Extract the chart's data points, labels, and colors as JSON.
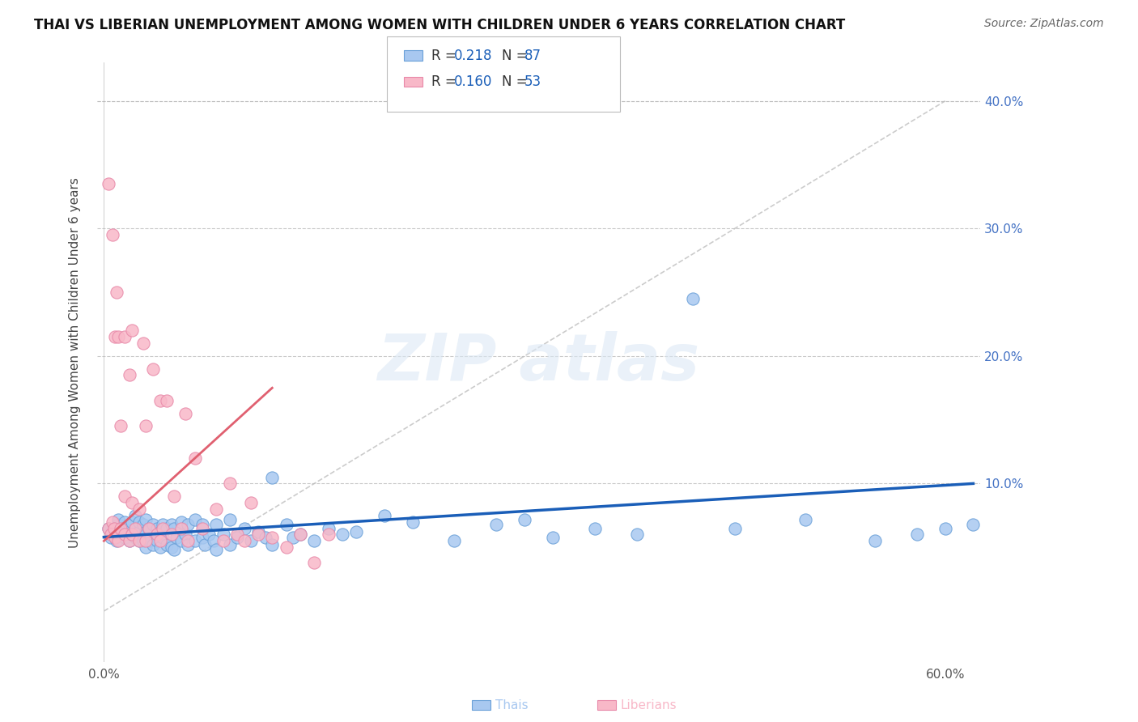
{
  "title": "THAI VS LIBERIAN UNEMPLOYMENT AMONG WOMEN WITH CHILDREN UNDER 6 YEARS CORRELATION CHART",
  "source": "Source: ZipAtlas.com",
  "ylim": [
    -0.04,
    0.43
  ],
  "xlim": [
    -0.005,
    0.625
  ],
  "legend_r1": "R = 0.218",
  "legend_n1": "N = 87",
  "legend_r2": "R = 0.160",
  "legend_n2": "N = 53",
  "thai_color": "#a8c8f0",
  "thai_edge_color": "#6aa0d8",
  "liberian_color": "#f8b8c8",
  "liberian_edge_color": "#e888a8",
  "thai_trend_color": "#1a5eb8",
  "liberian_trend_color": "#e06070",
  "ref_line_color": "#cccccc",
  "background_color": "#ffffff",
  "right_tick_color": "#4472c4",
  "thai_trend_x": [
    0.0,
    0.62
  ],
  "thai_trend_y": [
    0.058,
    0.1
  ],
  "liberian_trend_x": [
    0.0,
    0.12
  ],
  "liberian_trend_y": [
    0.055,
    0.175
  ],
  "ref_line_x": [
    0.0,
    0.6
  ],
  "ref_line_y": [
    0.0,
    0.4
  ],
  "thai_scatter_x": [
    0.003,
    0.005,
    0.007,
    0.009,
    0.01,
    0.01,
    0.012,
    0.015,
    0.015,
    0.015,
    0.018,
    0.018,
    0.02,
    0.02,
    0.022,
    0.022,
    0.025,
    0.025,
    0.025,
    0.028,
    0.028,
    0.03,
    0.03,
    0.03,
    0.032,
    0.032,
    0.035,
    0.035,
    0.038,
    0.038,
    0.04,
    0.04,
    0.042,
    0.042,
    0.045,
    0.045,
    0.048,
    0.048,
    0.05,
    0.05,
    0.052,
    0.055,
    0.055,
    0.058,
    0.06,
    0.06,
    0.065,
    0.065,
    0.07,
    0.07,
    0.072,
    0.075,
    0.078,
    0.08,
    0.08,
    0.085,
    0.09,
    0.09,
    0.095,
    0.1,
    0.105,
    0.11,
    0.115,
    0.12,
    0.12,
    0.13,
    0.135,
    0.14,
    0.15,
    0.16,
    0.17,
    0.18,
    0.2,
    0.22,
    0.25,
    0.28,
    0.3,
    0.32,
    0.35,
    0.38,
    0.42,
    0.45,
    0.5,
    0.55,
    0.58,
    0.6,
    0.62
  ],
  "thai_scatter_y": [
    0.065,
    0.058,
    0.06,
    0.055,
    0.068,
    0.072,
    0.062,
    0.058,
    0.065,
    0.07,
    0.055,
    0.068,
    0.06,
    0.07,
    0.058,
    0.075,
    0.055,
    0.062,
    0.07,
    0.055,
    0.068,
    0.05,
    0.062,
    0.072,
    0.055,
    0.065,
    0.052,
    0.068,
    0.055,
    0.065,
    0.05,
    0.062,
    0.058,
    0.068,
    0.052,
    0.065,
    0.05,
    0.068,
    0.048,
    0.065,
    0.058,
    0.055,
    0.07,
    0.06,
    0.052,
    0.068,
    0.055,
    0.072,
    0.058,
    0.068,
    0.052,
    0.06,
    0.055,
    0.048,
    0.068,
    0.06,
    0.052,
    0.072,
    0.058,
    0.065,
    0.055,
    0.062,
    0.058,
    0.052,
    0.105,
    0.068,
    0.058,
    0.06,
    0.055,
    0.065,
    0.06,
    0.062,
    0.075,
    0.07,
    0.055,
    0.068,
    0.072,
    0.058,
    0.065,
    0.06,
    0.245,
    0.065,
    0.072,
    0.055,
    0.06,
    0.065,
    0.068
  ],
  "liberian_scatter_x": [
    0.003,
    0.003,
    0.005,
    0.006,
    0.006,
    0.007,
    0.008,
    0.008,
    0.009,
    0.01,
    0.01,
    0.012,
    0.012,
    0.015,
    0.015,
    0.015,
    0.018,
    0.018,
    0.02,
    0.02,
    0.02,
    0.022,
    0.025,
    0.025,
    0.028,
    0.03,
    0.03,
    0.032,
    0.035,
    0.038,
    0.04,
    0.04,
    0.042,
    0.045,
    0.048,
    0.05,
    0.055,
    0.058,
    0.06,
    0.065,
    0.07,
    0.08,
    0.085,
    0.09,
    0.095,
    0.1,
    0.105,
    0.11,
    0.12,
    0.13,
    0.14,
    0.15,
    0.16
  ],
  "liberian_scatter_y": [
    0.065,
    0.335,
    0.06,
    0.07,
    0.295,
    0.065,
    0.058,
    0.215,
    0.25,
    0.055,
    0.215,
    0.065,
    0.145,
    0.06,
    0.09,
    0.215,
    0.055,
    0.185,
    0.06,
    0.085,
    0.22,
    0.065,
    0.055,
    0.08,
    0.21,
    0.055,
    0.145,
    0.065,
    0.19,
    0.06,
    0.055,
    0.165,
    0.065,
    0.165,
    0.06,
    0.09,
    0.065,
    0.155,
    0.055,
    0.12,
    0.065,
    0.08,
    0.055,
    0.1,
    0.06,
    0.055,
    0.085,
    0.06,
    0.058,
    0.05,
    0.06,
    0.038,
    0.06
  ]
}
